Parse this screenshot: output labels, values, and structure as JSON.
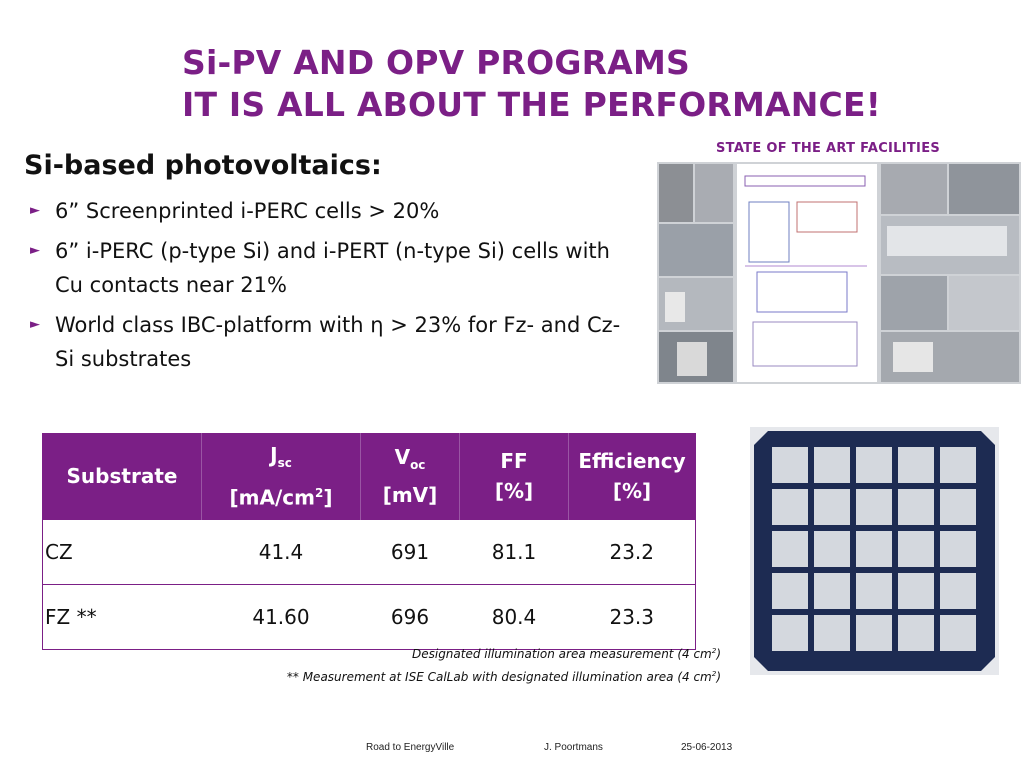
{
  "title": {
    "line1": "Si-PV AND OPV PROGRAMS",
    "line2": "IT IS ALL ABOUT THE PERFORMANCE!"
  },
  "section_heading": "Si-based photovoltaics:",
  "bullets": [
    "6” Screenprinted i-PERC cells > 20%",
    "6” i-PERC (p-type Si) and i-PERT (n-type Si) cells with Cu contacts near 21%",
    "World class IBC-platform with η > 23% for Fz- and Cz-Si substrates"
  ],
  "facilities_caption": "STATE OF THE ART FACILITIES",
  "table": {
    "headers": {
      "substrate": "Substrate",
      "jsc_main": "J",
      "jsc_sub": "sc",
      "jsc_unit_pre": "[mA/cm",
      "jsc_unit_sup": "2",
      "jsc_unit_post": "]",
      "voc_main": "V",
      "voc_sub": "oc",
      "voc_unit": "[mV]",
      "ff": "FF",
      "ff_unit": "[%]",
      "eff": "Efficiency",
      "eff_unit": "[%]"
    },
    "rows": [
      {
        "substrate": "CZ",
        "jsc": "41.4",
        "voc": "691",
        "ff": "81.1",
        "eff": "23.2"
      },
      {
        "substrate": "FZ **",
        "jsc": "41.60",
        "voc": "696",
        "ff": "80.4",
        "eff": "23.3"
      }
    ]
  },
  "notes": {
    "note1_pre": "Designated illumination area measurement (4 cm",
    "note1_sup": "2",
    "note1_post": ")",
    "note2_pre": "** Measurement at ISE CalLab with designated illumination area (4 cm",
    "note2_sup": "2",
    "note2_post": ")"
  },
  "footer": {
    "left": "Road to EnergyVille",
    "center": "J. Poortmans",
    "right": "25-06-2013"
  },
  "colors": {
    "accent": "#7b1f86"
  }
}
